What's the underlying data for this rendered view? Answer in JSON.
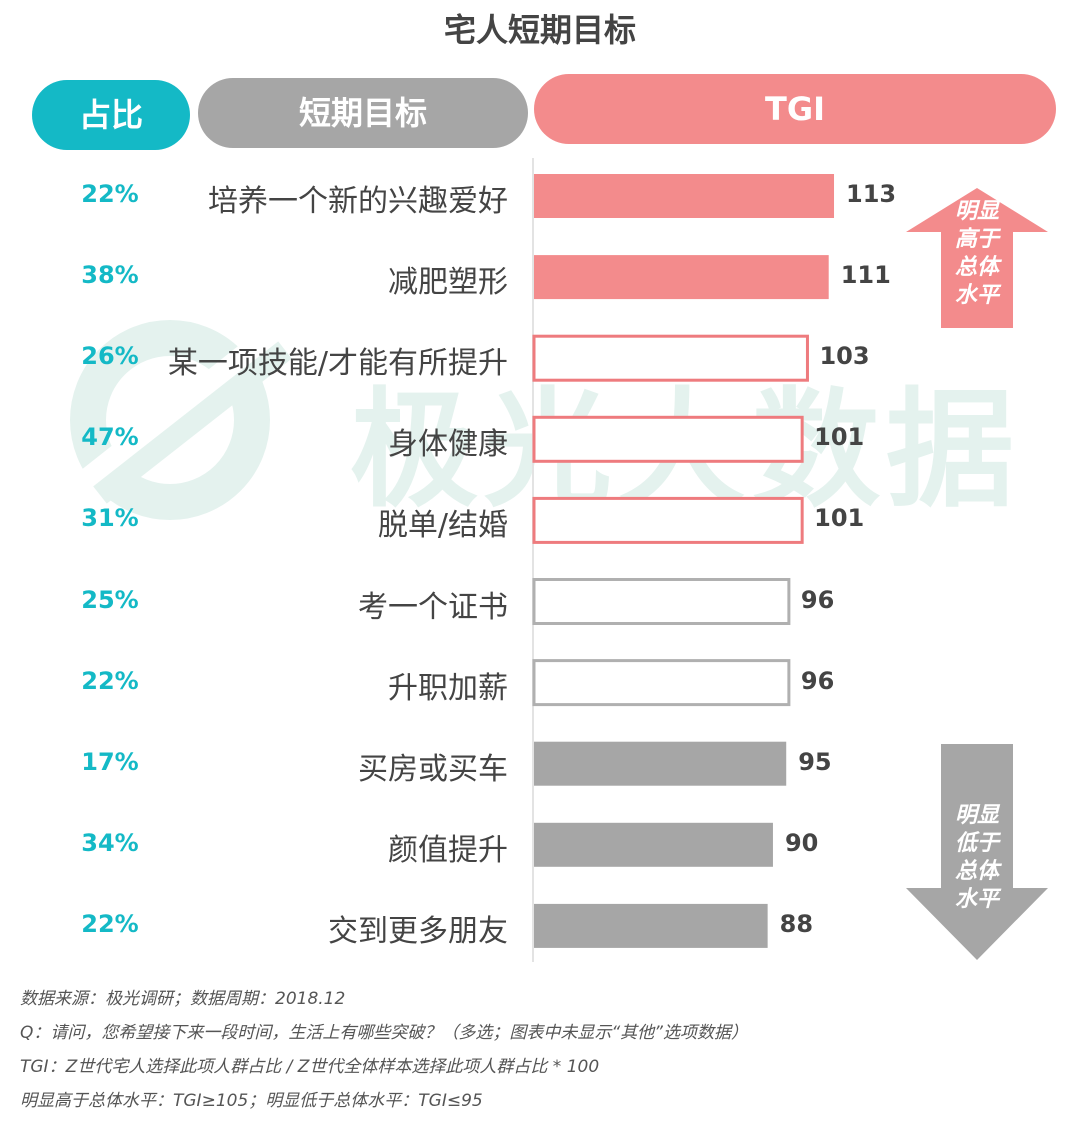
{
  "chart_data": {
    "type": "bar",
    "title": "宅人短期目标",
    "headers": {
      "share": "占比",
      "goal": "短期目标",
      "tgi": "TGI"
    },
    "categories": [
      "培养一个新的兴趣爱好",
      "减肥塑形",
      "某一项技能/才能有所提升",
      "身体健康",
      "脱单/结婚",
      "考一个证书",
      "升职加薪",
      "买房或买车",
      "颜值提升",
      "交到更多朋友"
    ],
    "shares": [
      "22%",
      "38%",
      "26%",
      "47%",
      "31%",
      "25%",
      "22%",
      "17%",
      "34%",
      "22%"
    ],
    "values": [
      113,
      111,
      103,
      101,
      101,
      96,
      96,
      95,
      90,
      88
    ],
    "groups": [
      "high",
      "high",
      "mid-high",
      "mid-high",
      "mid-high",
      "mid",
      "mid",
      "low",
      "low",
      "low"
    ],
    "ylim": [
      0,
      113
    ],
    "legend": {
      "high": "明显高于总体水平",
      "low": "明显低于总体水平"
    }
  },
  "colors": {
    "teal": "#14b9c6",
    "coral": "#f38b8c",
    "gray": "#a6a6a6",
    "outline_coral": "#ee7b7e",
    "outline_gray": "#b0b0b0"
  },
  "watermark": "极光大数据",
  "arrows": {
    "up_icon": "up-arrow-icon",
    "up_text": [
      "明显",
      "高于",
      "总体",
      "水平"
    ],
    "down_icon": "down-arrow-icon",
    "down_text": [
      "明显",
      "低于",
      "总体",
      "水平"
    ]
  },
  "footnotes": [
    "数据来源：极光调研；数据周期：2018.12",
    "Q：请问，您希望接下来一段时间，生活上有哪些突破？（多选；图表中未显示“其他”选项数据）",
    "TGI：Z世代宅人选择此项人群占比 / Z世代全体样本选择此项人群占比 * 100",
    "明显高于总体水平：TGI≥105；明显低于总体水平：TGI≤95"
  ]
}
